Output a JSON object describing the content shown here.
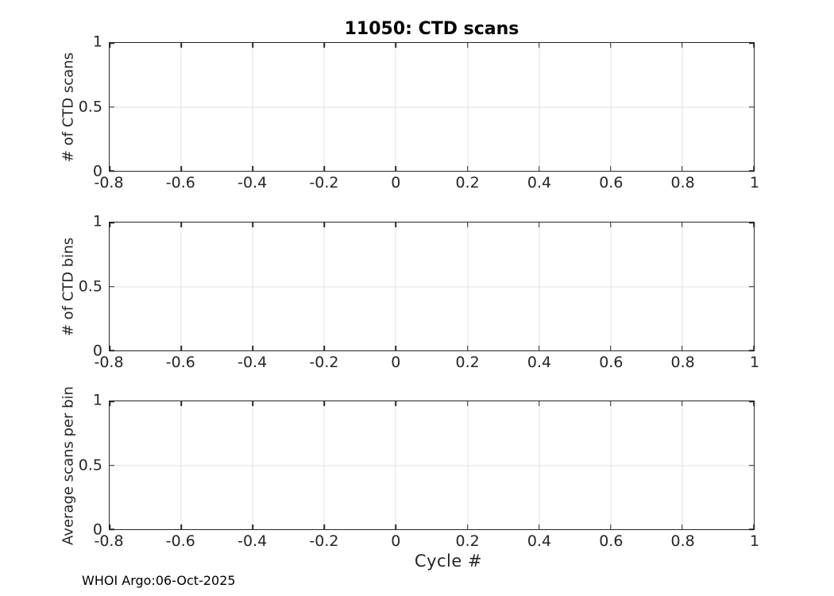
{
  "figure": {
    "footer": "WHOI Argo:06-Oct-2025",
    "background": "#ffffff",
    "axis_color": "#262626",
    "grid_color": "#e0e0e0",
    "title_color": "#000000"
  },
  "chart_data": [
    {
      "type": "line",
      "title": "11050: CTD scans",
      "ylabel": "# of CTD scans",
      "xlabel": "",
      "xlim": [
        -0.8,
        1
      ],
      "ylim": [
        0,
        1
      ],
      "xticks": [
        -0.8,
        -0.6,
        -0.4,
        -0.2,
        0,
        0.2,
        0.4,
        0.6,
        0.8,
        1
      ],
      "xtick_labels": [
        "-0.8",
        "-0.6",
        "-0.4",
        "-0.2",
        "0",
        "0.2",
        "0.4",
        "0.6",
        "0.8",
        "1"
      ],
      "yticks": [
        0,
        0.5,
        1
      ],
      "ytick_labels": [
        "0",
        "0.5",
        "1"
      ],
      "grid": true,
      "legend": null,
      "series": []
    },
    {
      "type": "line",
      "title": "",
      "ylabel": "# of CTD bins",
      "xlabel": "",
      "xlim": [
        -0.8,
        1
      ],
      "ylim": [
        0,
        1
      ],
      "xticks": [
        -0.8,
        -0.6,
        -0.4,
        -0.2,
        0,
        0.2,
        0.4,
        0.6,
        0.8,
        1
      ],
      "xtick_labels": [
        "-0.8",
        "-0.6",
        "-0.4",
        "-0.2",
        "0",
        "0.2",
        "0.4",
        "0.6",
        "0.8",
        "1"
      ],
      "yticks": [
        0,
        0.5,
        1
      ],
      "ytick_labels": [
        "0",
        "0.5",
        "1"
      ],
      "grid": true,
      "legend": null,
      "series": []
    },
    {
      "type": "line",
      "title": "",
      "ylabel": "Average scans per bin",
      "xlabel": "Cycle #",
      "xlim": [
        -0.8,
        1
      ],
      "ylim": [
        0,
        1
      ],
      "xticks": [
        -0.8,
        -0.6,
        -0.4,
        -0.2,
        0,
        0.2,
        0.4,
        0.6,
        0.8,
        1
      ],
      "xtick_labels": [
        "-0.8",
        "-0.6",
        "-0.4",
        "-0.2",
        "0",
        "0.2",
        "0.4",
        "0.6",
        "0.8",
        "1"
      ],
      "yticks": [
        0,
        0.5,
        1
      ],
      "ytick_labels": [
        "0",
        "0.5",
        "1"
      ],
      "grid": true,
      "legend": null,
      "series": []
    }
  ]
}
